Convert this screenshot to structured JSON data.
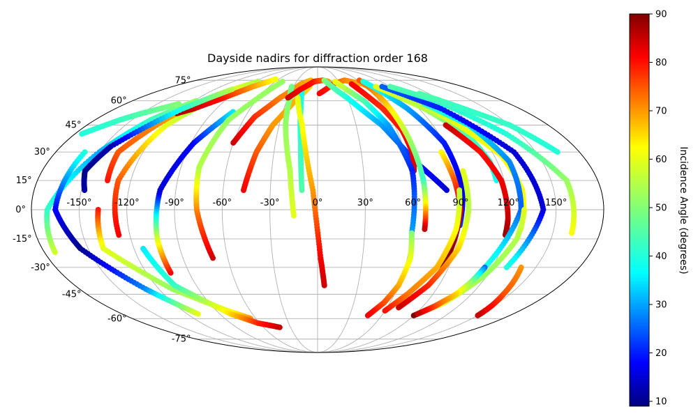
{
  "chart_data": {
    "type": "scatter",
    "projection": "mollweide",
    "title": "Dayside nadirs for diffraction order 168",
    "grid": true,
    "xlabel": "",
    "ylabel": "",
    "lon_ticks": [
      "-150°",
      "-120°",
      "-90°",
      "-60°",
      "-30°",
      "0°",
      "30°",
      "60°",
      "90°",
      "120°",
      "150°"
    ],
    "lat_ticks": [
      "75°",
      "60°",
      "45°",
      "30°",
      "15°",
      "0°",
      "-15°",
      "-30°",
      "-45°",
      "-60°",
      "-75°"
    ],
    "colorbar": {
      "label": "Incidence Angle (degrees)",
      "range": [
        9,
        90
      ],
      "ticks": [
        "90",
        "80",
        "70",
        "60",
        "50",
        "40",
        "30",
        "20",
        "10"
      ],
      "colormap": "jet"
    },
    "tracks": [
      {
        "lon": [
          -173,
          -170,
          -150,
          -135,
          -118
        ],
        "lat": [
          -22,
          0,
          30,
          48,
          60
        ],
        "inc": [
          58,
          42,
          30,
          42,
          52
        ]
      },
      {
        "lon": [
          -127,
          -128,
          -118,
          -103,
          -82
        ],
        "lat": [
          -13,
          15,
          45,
          62,
          73
        ],
        "inc": [
          82,
          75,
          60,
          50,
          45
        ]
      },
      {
        "lon": [
          -135,
          -137,
          -122,
          -105,
          -85
        ],
        "lat": [
          15,
          30,
          50,
          65,
          74
        ],
        "inc": [
          80,
          75,
          70,
          62,
          55
        ]
      },
      {
        "lon": [
          -120,
          -110,
          -95,
          -80,
          -65
        ],
        "lat": [
          52,
          55,
          62,
          70,
          76
        ],
        "inc": [
          88,
          85,
          80,
          70,
          62
        ]
      },
      {
        "lon": [
          -138,
          -140,
          -110,
          -80,
          -65
        ],
        "lat": [
          0,
          -20,
          -42,
          -55,
          -60
        ],
        "inc": [
          80,
          60,
          52,
          60,
          70
        ]
      },
      {
        "lon": [
          -148,
          -152,
          -145,
          -120,
          -100
        ],
        "lat": [
          10,
          20,
          33,
          55,
          68
        ],
        "inc": [
          12,
          10,
          12,
          40,
          55
        ]
      },
      {
        "lon": [
          -103,
          -103,
          -100,
          -88,
          -73
        ],
        "lat": [
          -33,
          -15,
          10,
          35,
          53
        ],
        "inc": [
          82,
          60,
          15,
          18,
          35
        ]
      },
      {
        "lon": [
          -160,
          -165,
          -155,
          -130,
          -110
        ],
        "lat": [
          30,
          0,
          -20,
          -42,
          -57
        ],
        "inc": [
          40,
          18,
          10,
          28,
          60
        ]
      },
      {
        "lon": [
          -70,
          -76,
          -78,
          -72,
          -50
        ],
        "lat": [
          -25,
          0,
          22,
          48,
          74
        ],
        "inc": [
          85,
          72,
          55,
          52,
          52
        ]
      },
      {
        "lon": [
          -114,
          -106,
          -80,
          -62,
          -42
        ],
        "lat": [
          -20,
          -40,
          -57,
          -63,
          -66
        ],
        "inc": [
          35,
          42,
          65,
          78,
          85
        ]
      },
      {
        "lon": [
          -47,
          -42,
          -35,
          -22,
          -10
        ],
        "lat": [
          10,
          30,
          45,
          60,
          70
        ],
        "inc": [
          82,
          75,
          70,
          68,
          65
        ]
      },
      {
        "lon": [
          -60,
          -52,
          -38,
          -22,
          -10
        ],
        "lat": [
          35,
          50,
          62,
          72,
          75
        ],
        "inc": [
          85,
          78,
          72,
          70,
          68
        ]
      },
      {
        "lon": [
          -15,
          -18,
          -25,
          -28,
          -32
        ],
        "lat": [
          -3,
          20,
          45,
          62,
          70
        ],
        "inc": [
          60,
          55,
          52,
          50,
          48
        ]
      },
      {
        "lon": [
          -10,
          -12,
          -15,
          -18
        ],
        "lat": [
          10,
          35,
          55,
          68
        ],
        "inc": [
          45,
          42,
          40,
          38
        ]
      },
      {
        "lon": [
          5,
          2,
          -3,
          -12,
          -20
        ],
        "lat": [
          -40,
          -25,
          10,
          45,
          62
        ],
        "inc": [
          85,
          82,
          70,
          62,
          60
        ]
      },
      {
        "lon": [
          -30,
          -20,
          -5,
          8,
          15
        ],
        "lat": [
          62,
          68,
          74,
          75,
          74
        ],
        "inc": [
          85,
          82,
          80,
          75,
          70
        ]
      },
      {
        "lon": [
          2,
          20,
          40,
          60,
          72
        ],
        "lat": [
          65,
          72,
          75,
          72,
          66
        ],
        "inc": [
          82,
          78,
          72,
          68,
          65
        ]
      },
      {
        "lon": [
          10,
          30,
          50,
          65,
          82
        ],
        "lat": [
          75,
          62,
          45,
          25,
          10
        ],
        "inc": [
          50,
          40,
          30,
          20,
          15
        ]
      },
      {
        "lon": [
          45,
          58,
          64,
          65,
          63
        ],
        "lat": [
          72,
          55,
          42,
          30,
          20
        ],
        "inc": [
          82,
          78,
          80,
          82,
          84
        ]
      },
      {
        "lon": [
          62,
          64,
          66,
          68,
          68
        ],
        "lat": [
          75,
          60,
          40,
          15,
          -10
        ],
        "inc": [
          75,
          68,
          55,
          42,
          85
        ]
      },
      {
        "lon": [
          25,
          45,
          55,
          62,
          60
        ],
        "lat": [
          74,
          60,
          45,
          20,
          -12
        ],
        "inc": [
          62,
          45,
          30,
          20,
          30
        ]
      },
      {
        "lon": [
          60,
          62,
          60,
          55,
          47
        ],
        "lat": [
          -12,
          -25,
          -40,
          -50,
          -58
        ],
        "inc": [
          50,
          60,
          68,
          75,
          82
        ]
      },
      {
        "lon": [
          65,
          80,
          90,
          92,
          90
        ],
        "lat": [
          74,
          55,
          35,
          10,
          -8
        ],
        "inc": [
          40,
          30,
          20,
          15,
          22
        ]
      },
      {
        "lon": [
          85,
          88,
          90,
          88,
          86
        ],
        "lat": [
          30,
          15,
          0,
          -15,
          -30
        ],
        "inc": [
          62,
          75,
          85,
          88,
          90
        ]
      },
      {
        "lon": [
          90,
          88,
          82,
          70,
          60
        ],
        "lat": [
          10,
          -10,
          -30,
          -45,
          -55
        ],
        "inc": [
          55,
          62,
          68,
          72,
          80
        ]
      },
      {
        "lon": [
          95,
          95,
          92,
          82,
          70
        ],
        "lat": [
          20,
          0,
          -20,
          -40,
          -53
        ],
        "inc": [
          60,
          55,
          65,
          78,
          85
        ]
      },
      {
        "lon": [
          72,
          95,
          110,
          115,
          115
        ],
        "lat": [
          70,
          55,
          40,
          25,
          15
        ],
        "inc": [
          60,
          55,
          45,
          40,
          38
        ]
      },
      {
        "lon": [
          100,
          112,
          118,
          120,
          120
        ],
        "lat": [
          45,
          30,
          15,
          -5,
          -13
        ],
        "inc": [
          85,
          80,
          82,
          85,
          88
        ]
      },
      {
        "lon": [
          95,
          110,
          125,
          130,
          129
        ],
        "lat": [
          58,
          45,
          28,
          10,
          -10
        ],
        "inc": [
          55,
          60,
          62,
          62,
          62
        ]
      },
      {
        "lon": [
          100,
          118,
          128,
          128,
          115
        ],
        "lat": [
          58,
          45,
          25,
          0,
          -30
        ],
        "inc": [
          42,
          35,
          28,
          25,
          40
        ]
      },
      {
        "lon": [
          80,
          110,
          135,
          142,
          130
        ],
        "lat": [
          70,
          55,
          30,
          0,
          -30
        ],
        "inc": [
          25,
          20,
          15,
          15,
          40
        ]
      },
      {
        "lon": [
          130,
          128,
          118,
          105,
          90
        ],
        "lat": [
          0,
          -15,
          -35,
          -50,
          -58
        ],
        "inc": [
          60,
          55,
          52,
          58,
          90
        ]
      },
      {
        "lon": [
          115,
          112,
          108,
          100,
          92
        ],
        "lat": [
          -30,
          -38,
          -45,
          -52,
          -57
        ],
        "inc": [
          25,
          50,
          65,
          75,
          85
        ]
      },
      {
        "lon": [
          140,
          145,
          148,
          150
        ],
        "lat": [
          -30,
          -45,
          -52,
          -58
        ],
        "inc": [
          70,
          75,
          80,
          85
        ]
      },
      {
        "lon": [
          90,
          115,
          140,
          160,
          162
        ],
        "lat": [
          70,
          60,
          40,
          15,
          -12
        ],
        "inc": [
          45,
          42,
          40,
          52,
          62
        ]
      },
      {
        "lon": [
          110,
          130,
          150,
          165
        ],
        "lat": [
          65,
          55,
          45,
          30
        ],
        "inc": [
          45,
          42,
          42,
          40
        ]
      },
      {
        "lon": [
          -175,
          -160,
          -150,
          -130
        ],
        "lat": [
          40,
          48,
          52,
          58
        ],
        "inc": [
          40,
          42,
          45,
          50
        ]
      }
    ]
  }
}
